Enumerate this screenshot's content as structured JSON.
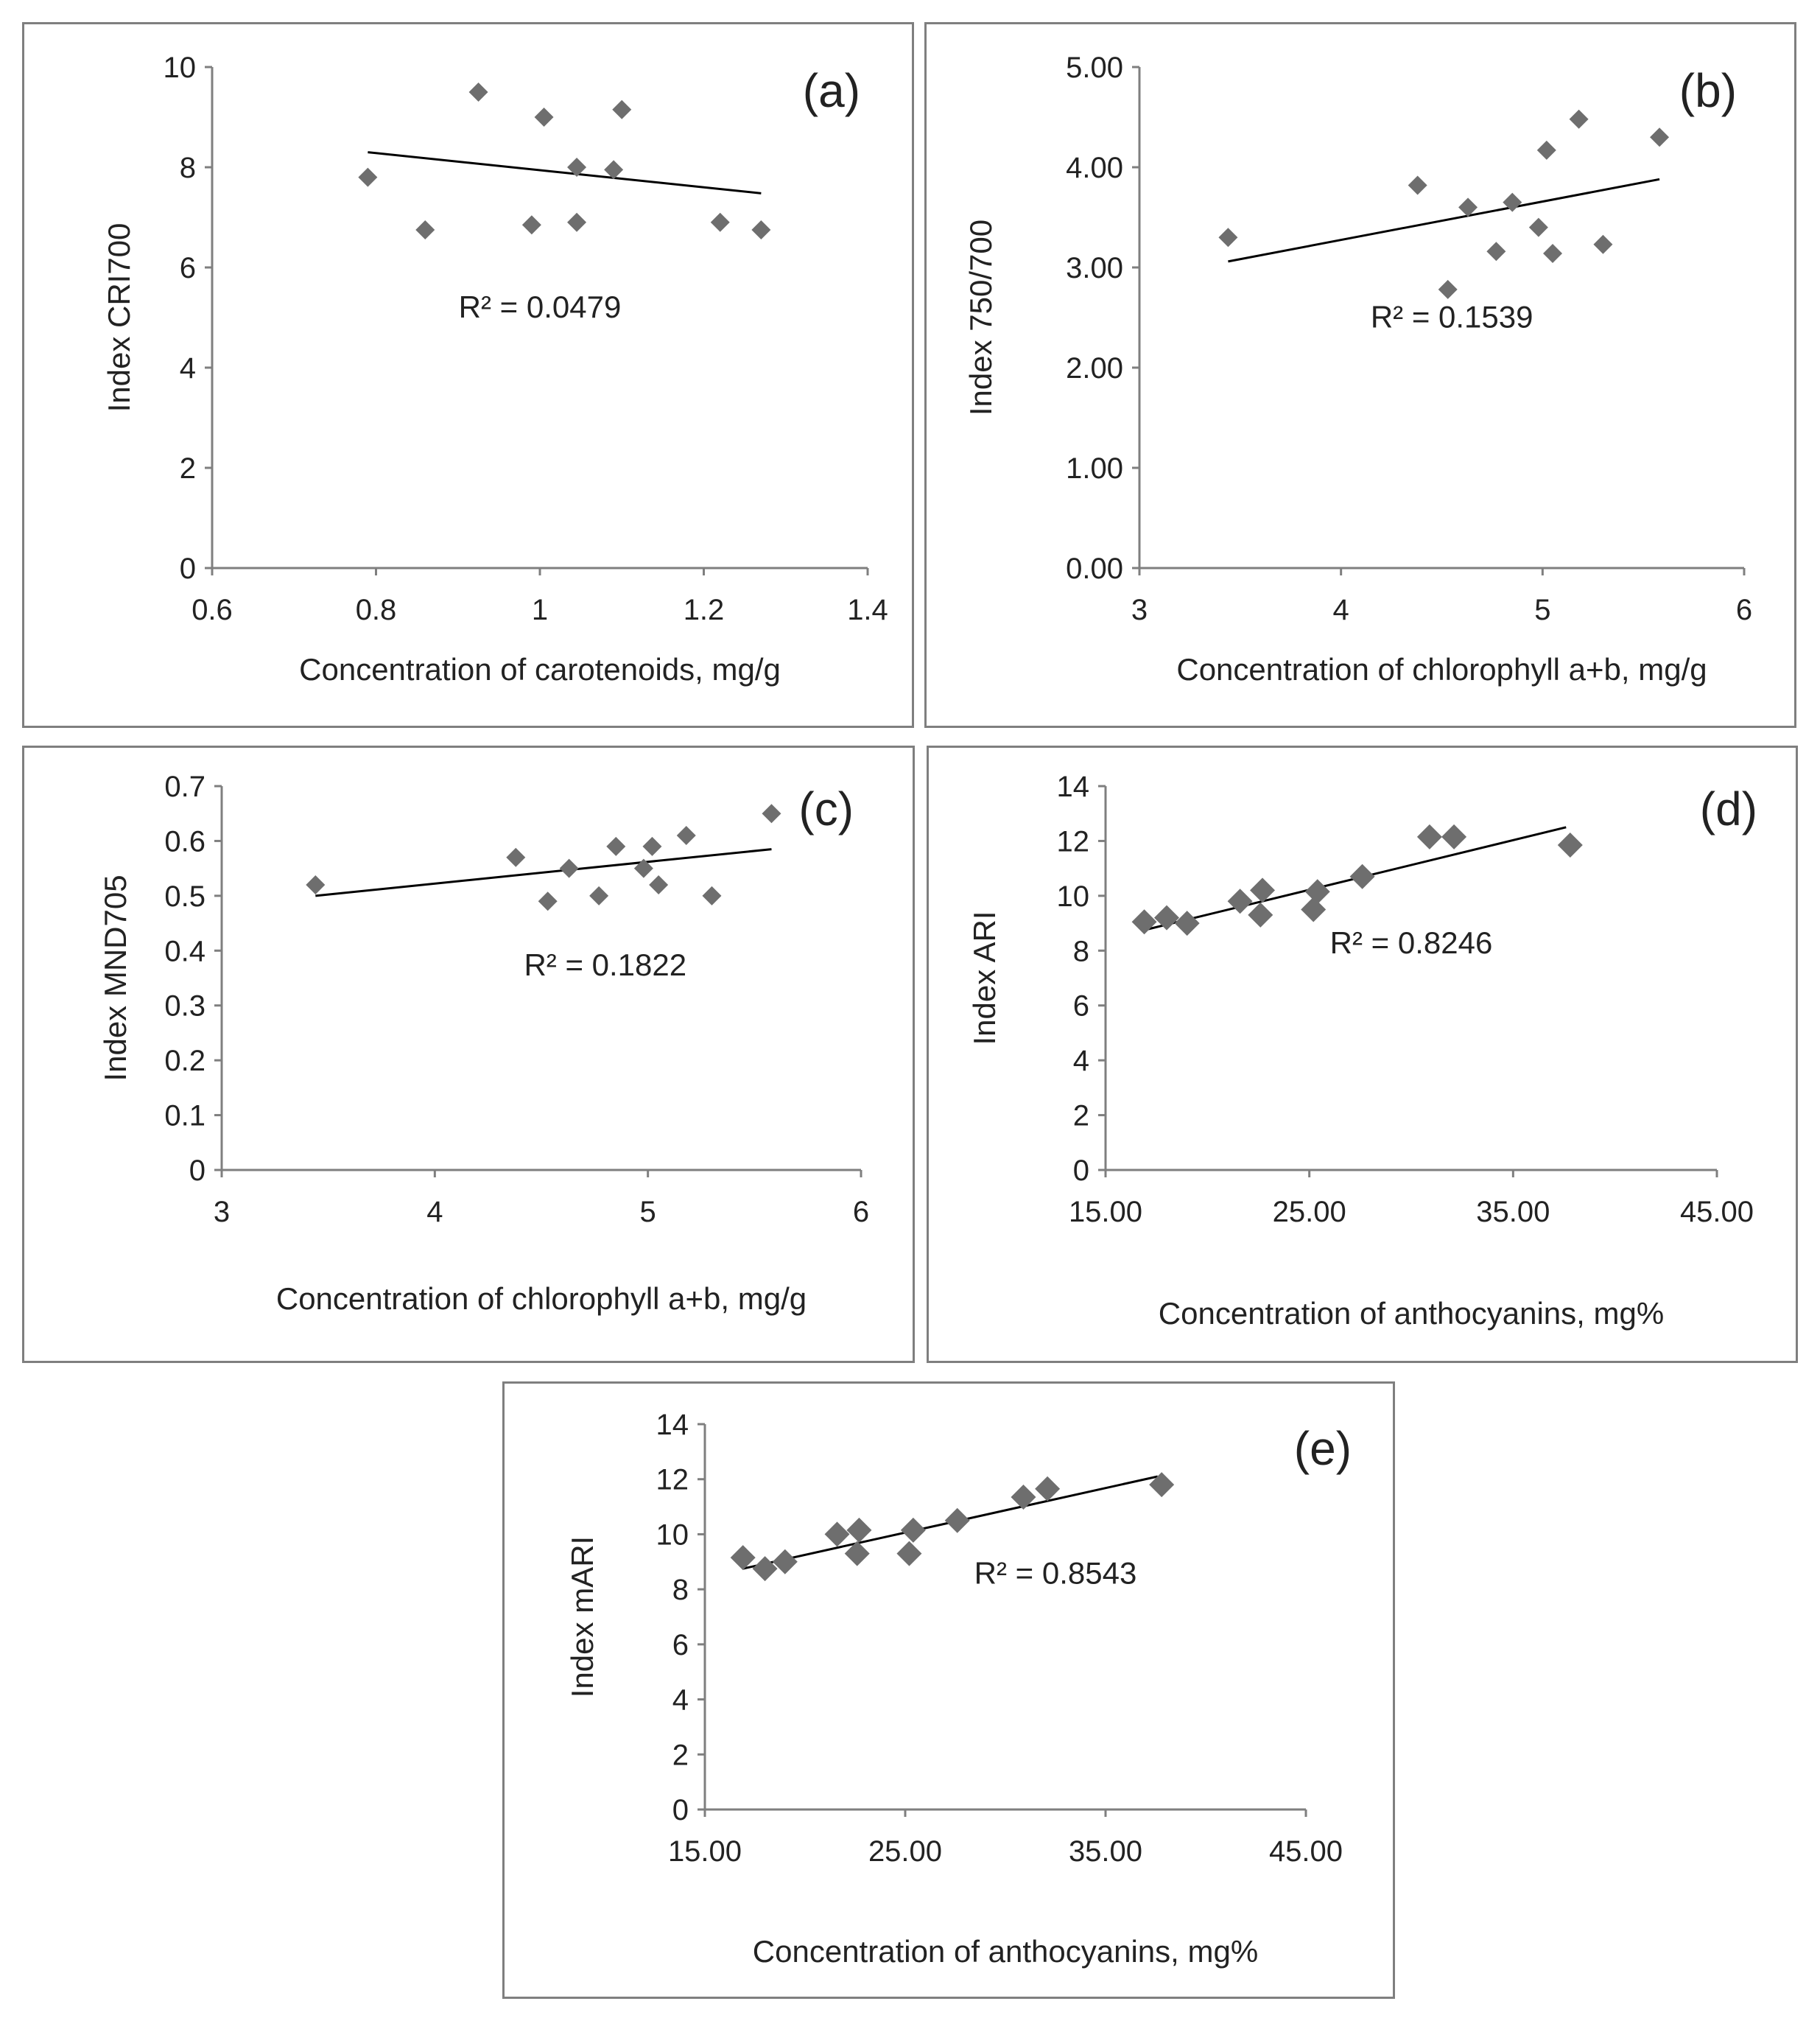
{
  "chart_data": [
    {
      "id": "a",
      "type": "scatter",
      "panel_label": "(a)",
      "xlabel": "Concentration of carotenoids, mg/g",
      "ylabel": "Index CRI700",
      "xlim": [
        0.6,
        1.4
      ],
      "ylim": [
        0,
        10
      ],
      "xticks": [
        0.6,
        0.8,
        1,
        1.2,
        1.4
      ],
      "yticks": [
        0,
        2,
        4,
        6,
        8,
        10
      ],
      "xtick_labels": [
        "0.6",
        "0.8",
        "1",
        "1.2",
        "1.4"
      ],
      "ytick_labels": [
        "0",
        "2",
        "4",
        "6",
        "8",
        "10"
      ],
      "points": [
        [
          0.79,
          7.8
        ],
        [
          0.86,
          6.75
        ],
        [
          0.925,
          9.5
        ],
        [
          0.99,
          6.85
        ],
        [
          1.005,
          9.0
        ],
        [
          1.045,
          6.9
        ],
        [
          1.045,
          8.0
        ],
        [
          1.09,
          7.95
        ],
        [
          1.1,
          9.15
        ],
        [
          1.22,
          6.9
        ],
        [
          1.27,
          6.75
        ]
      ],
      "trendline": [
        [
          0.79,
          8.3
        ],
        [
          1.27,
          7.48
        ]
      ],
      "r2_label": "R² = 0.0479",
      "r2_pos": [
        1.0,
        5.0
      ],
      "grid": false,
      "legend": "none"
    },
    {
      "id": "b",
      "type": "scatter",
      "panel_label": "(b)",
      "xlabel": "Concentration of chlorophyll a+b, mg/g",
      "ylabel": "Index 750/700",
      "xlim": [
        3,
        6
      ],
      "ylim": [
        0,
        5
      ],
      "xticks": [
        3,
        4,
        5,
        6
      ],
      "yticks": [
        0,
        1,
        2,
        3,
        4,
        5
      ],
      "xtick_labels": [
        "3",
        "4",
        "5",
        "6"
      ],
      "ytick_labels": [
        "0.00",
        "1.00",
        "2.00",
        "3.00",
        "4.00",
        "5.00"
      ],
      "points": [
        [
          3.44,
          3.3
        ],
        [
          4.38,
          3.82
        ],
        [
          4.53,
          2.78
        ],
        [
          4.63,
          3.6
        ],
        [
          4.77,
          3.16
        ],
        [
          4.85,
          3.65
        ],
        [
          4.98,
          3.4
        ],
        [
          5.02,
          4.17
        ],
        [
          5.05,
          3.14
        ],
        [
          5.18,
          4.48
        ],
        [
          5.3,
          3.23
        ],
        [
          5.58,
          4.3
        ]
      ],
      "trendline": [
        [
          3.44,
          3.06
        ],
        [
          5.58,
          3.88
        ]
      ],
      "r2_label": "R² = 0.1539",
      "r2_pos": [
        4.55,
        2.4
      ],
      "grid": false,
      "legend": "none"
    },
    {
      "id": "c",
      "type": "scatter",
      "panel_label": "(c)",
      "xlabel": "Concentration of chlorophyll a+b, mg/g",
      "ylabel": "Index MND705",
      "xlim": [
        3,
        6
      ],
      "ylim": [
        0,
        0.7
      ],
      "xticks": [
        3,
        4,
        5,
        6
      ],
      "yticks": [
        0,
        0.1,
        0.2,
        0.3,
        0.4,
        0.5,
        0.6,
        0.7
      ],
      "xtick_labels": [
        "3",
        "4",
        "5",
        "6"
      ],
      "ytick_labels": [
        "0",
        "0.1",
        "0.2",
        "0.3",
        "0.4",
        "0.5",
        "0.6",
        "0.7"
      ],
      "points": [
        [
          3.44,
          0.52
        ],
        [
          4.38,
          0.57
        ],
        [
          4.53,
          0.49
        ],
        [
          4.63,
          0.55
        ],
        [
          4.77,
          0.5
        ],
        [
          4.85,
          0.59
        ],
        [
          4.98,
          0.55
        ],
        [
          5.02,
          0.59
        ],
        [
          5.05,
          0.52
        ],
        [
          5.18,
          0.61
        ],
        [
          5.3,
          0.5
        ],
        [
          5.58,
          0.65
        ]
      ],
      "trendline": [
        [
          3.44,
          0.5
        ],
        [
          5.58,
          0.585
        ]
      ],
      "r2_label": "R² = 0.1822",
      "r2_pos": [
        4.8,
        0.355
      ],
      "grid": false,
      "legend": "none"
    },
    {
      "id": "d",
      "type": "scatter",
      "panel_label": "(d)",
      "xlabel": "Concentration of anthocyanins, mg%",
      "ylabel": "Index ARI",
      "xlim": [
        15,
        45
      ],
      "ylim": [
        0,
        14
      ],
      "xticks": [
        15,
        25,
        35,
        45
      ],
      "yticks": [
        0,
        2,
        4,
        6,
        8,
        10,
        12,
        14
      ],
      "xtick_labels": [
        "15.00",
        "25.00",
        "35.00",
        "45.00"
      ],
      "ytick_labels": [
        "0",
        "2",
        "4",
        "6",
        "8",
        "10",
        "12",
        "14"
      ],
      "points": [
        [
          16.9,
          9.05
        ],
        [
          18.0,
          9.2
        ],
        [
          19.0,
          9.0
        ],
        [
          21.6,
          9.8
        ],
        [
          22.6,
          9.3
        ],
        [
          22.7,
          10.2
        ],
        [
          25.2,
          9.5
        ],
        [
          25.4,
          10.15
        ],
        [
          27.6,
          10.7
        ],
        [
          30.9,
          12.15
        ],
        [
          32.1,
          12.15
        ],
        [
          37.8,
          11.85
        ]
      ],
      "trendline": [
        [
          16.9,
          8.75
        ],
        [
          37.6,
          12.5
        ]
      ],
      "r2_label": "R² = 0.8246",
      "r2_pos": [
        30.0,
        7.9
      ],
      "grid": false,
      "legend": "none"
    },
    {
      "id": "e",
      "type": "scatter",
      "panel_label": "(e)",
      "xlabel": "Concentration of anthocyanins, mg%",
      "ylabel": "Index mARI",
      "xlim": [
        15,
        45
      ],
      "ylim": [
        0,
        14
      ],
      "xticks": [
        15,
        25,
        35,
        45
      ],
      "yticks": [
        0,
        2,
        4,
        6,
        8,
        10,
        12,
        14
      ],
      "xtick_labels": [
        "15.00",
        "25.00",
        "35.00",
        "45.00"
      ],
      "ytick_labels": [
        "0",
        "2",
        "4",
        "6",
        "8",
        "10",
        "12",
        "14"
      ],
      "points": [
        [
          16.9,
          9.15
        ],
        [
          18.0,
          8.75
        ],
        [
          19.0,
          9.0
        ],
        [
          21.6,
          10.0
        ],
        [
          22.6,
          9.3
        ],
        [
          22.7,
          10.15
        ],
        [
          25.2,
          9.3
        ],
        [
          25.4,
          10.15
        ],
        [
          27.6,
          10.5
        ],
        [
          30.9,
          11.35
        ],
        [
          32.1,
          11.65
        ],
        [
          37.8,
          11.8
        ]
      ],
      "trendline": [
        [
          16.9,
          8.75
        ],
        [
          37.6,
          12.1
        ]
      ],
      "r2_label": "R² = 0.8543",
      "r2_pos": [
        32.5,
        8.2
      ],
      "grid": false,
      "legend": "none"
    }
  ]
}
